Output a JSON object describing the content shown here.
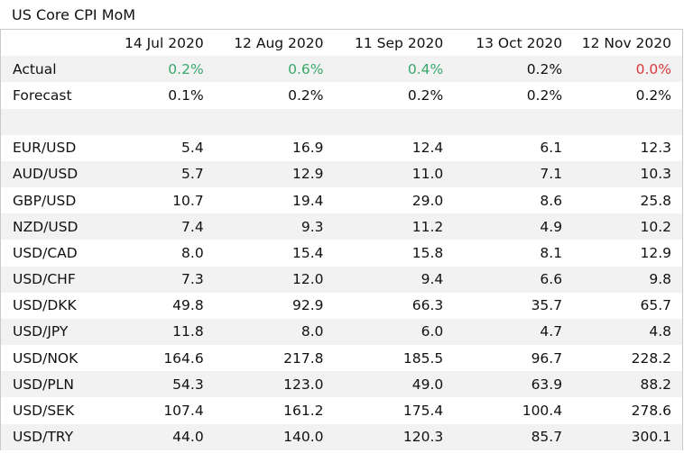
{
  "title": "US Core CPI MoM",
  "dates": [
    "14 Jul 2020",
    "12 Aug 2020",
    "11 Sep 2020",
    "13 Oct 2020",
    "12 Nov 2020"
  ],
  "actual": {
    "label": "Actual",
    "values": [
      "0.2%",
      "0.6%",
      "0.4%",
      "0.2%",
      "0.0%"
    ],
    "colors": [
      "#3aa86b",
      "#3aa86b",
      "#3aa86b",
      "#111111",
      "#d9383a"
    ]
  },
  "forecast": {
    "label": "Forecast",
    "values": [
      "0.1%",
      "0.2%",
      "0.2%",
      "0.2%",
      "0.2%"
    ]
  },
  "pairs": [
    {
      "name": "EUR/USD",
      "values": [
        "5.4",
        "16.9",
        "12.4",
        "6.1",
        "12.3"
      ]
    },
    {
      "name": "AUD/USD",
      "values": [
        "5.7",
        "12.9",
        "11.0",
        "7.1",
        "10.3"
      ]
    },
    {
      "name": "GBP/USD",
      "values": [
        "10.7",
        "19.4",
        "29.0",
        "8.6",
        "25.8"
      ]
    },
    {
      "name": "NZD/USD",
      "values": [
        "7.4",
        "9.3",
        "11.2",
        "4.9",
        "10.2"
      ]
    },
    {
      "name": "USD/CAD",
      "values": [
        "8.0",
        "15.4",
        "15.8",
        "8.1",
        "12.9"
      ]
    },
    {
      "name": "USD/CHF",
      "values": [
        "7.3",
        "12.0",
        "9.4",
        "6.6",
        "9.8"
      ]
    },
    {
      "name": "USD/DKK",
      "values": [
        "49.8",
        "92.9",
        "66.3",
        "35.7",
        "65.7"
      ]
    },
    {
      "name": "USD/JPY",
      "values": [
        "11.8",
        "8.0",
        "6.0",
        "4.7",
        "4.8"
      ]
    },
    {
      "name": "USD/NOK",
      "values": [
        "164.6",
        "217.8",
        "185.5",
        "96.7",
        "228.2"
      ]
    },
    {
      "name": "USD/PLN",
      "values": [
        "54.3",
        "123.0",
        "49.0",
        "63.9",
        "88.2"
      ]
    },
    {
      "name": "USD/SEK",
      "values": [
        "107.4",
        "161.2",
        "175.4",
        "100.4",
        "278.6"
      ]
    },
    {
      "name": "USD/TRY",
      "values": [
        "44.0",
        "140.0",
        "120.3",
        "85.7",
        "300.1"
      ]
    }
  ]
}
